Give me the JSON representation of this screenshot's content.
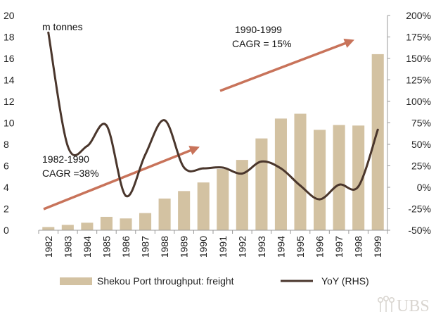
{
  "chart_data": {
    "type": "bar",
    "categories": [
      "1982",
      "1983",
      "1984",
      "1985",
      "1986",
      "1987",
      "1988",
      "1989",
      "1990",
      "1991",
      "1992",
      "1993",
      "1994",
      "1995",
      "1996",
      "1997",
      "1998",
      "1999"
    ],
    "series": [
      {
        "name": "Shekou Port throughput: freight",
        "kind": "bar",
        "axis": "left",
        "color": "#d3c2a2",
        "values": [
          0.3,
          0.5,
          0.7,
          1.25,
          1.1,
          1.6,
          2.95,
          3.65,
          4.45,
          5.7,
          6.55,
          8.55,
          10.4,
          10.85,
          9.35,
          9.8,
          9.75,
          16.4
        ]
      },
      {
        "name": "YoY (RHS)",
        "kind": "line",
        "axis": "right",
        "color": "#4a362c",
        "values": [
          180,
          48,
          48,
          72,
          -10,
          38,
          78,
          23,
          22,
          23,
          16,
          30,
          22,
          2,
          -14,
          3,
          1,
          67
        ]
      }
    ],
    "y_left": {
      "ylim": [
        0,
        20
      ],
      "ticks": [
        "0",
        "2",
        "4",
        "6",
        "8",
        "10",
        "12",
        "14",
        "16",
        "18",
        "20"
      ],
      "unit_label": "m tonnes"
    },
    "y_right": {
      "ylim": [
        -50,
        200
      ],
      "ticks": [
        "-50%",
        "-25%",
        "0%",
        "25%",
        "50%",
        "75%",
        "100%",
        "125%",
        "150%",
        "175%",
        "200%"
      ]
    },
    "annotations": [
      {
        "text": [
          "1990-1999",
          "CAGR = 15%"
        ],
        "arrow_color": "#c8735a"
      },
      {
        "text": [
          "1982-1990",
          "CAGR =38%"
        ],
        "arrow_color": "#c8735a"
      }
    ],
    "legend": {
      "placement": "bottom"
    },
    "grid": false
  },
  "logo": {
    "text": "UBS"
  }
}
